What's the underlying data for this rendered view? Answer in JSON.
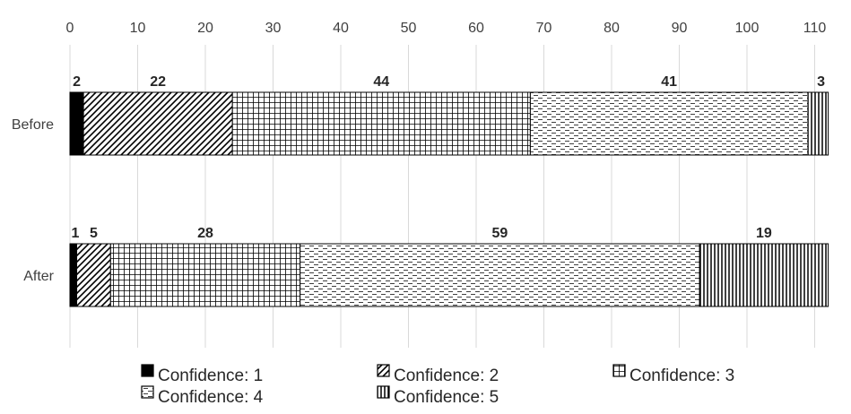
{
  "chart_data": {
    "type": "bar",
    "orientation": "horizontal",
    "stacked": true,
    "categories": [
      "Before",
      "After"
    ],
    "series": [
      {
        "name": "Confidence: 1",
        "values": [
          2,
          1
        ],
        "pattern": "solid"
      },
      {
        "name": "Confidence: 2",
        "values": [
          22,
          5
        ],
        "pattern": "diagonal"
      },
      {
        "name": "Confidence: 3",
        "values": [
          44,
          28
        ],
        "pattern": "grid"
      },
      {
        "name": "Confidence: 4",
        "values": [
          41,
          59
        ],
        "pattern": "dashed-horizontal"
      },
      {
        "name": "Confidence: 5",
        "values": [
          3,
          19
        ],
        "pattern": "vertical"
      }
    ],
    "x_ticks": [
      0,
      10,
      20,
      30,
      40,
      50,
      60,
      70,
      80,
      90,
      100,
      110
    ],
    "xlim": [
      0,
      112
    ],
    "x_axis_position": "top",
    "grid": true,
    "legend_position": "bottom",
    "colors": {
      "ink": "#000000",
      "grid": "#d9d9d9",
      "text": "#404040"
    }
  }
}
